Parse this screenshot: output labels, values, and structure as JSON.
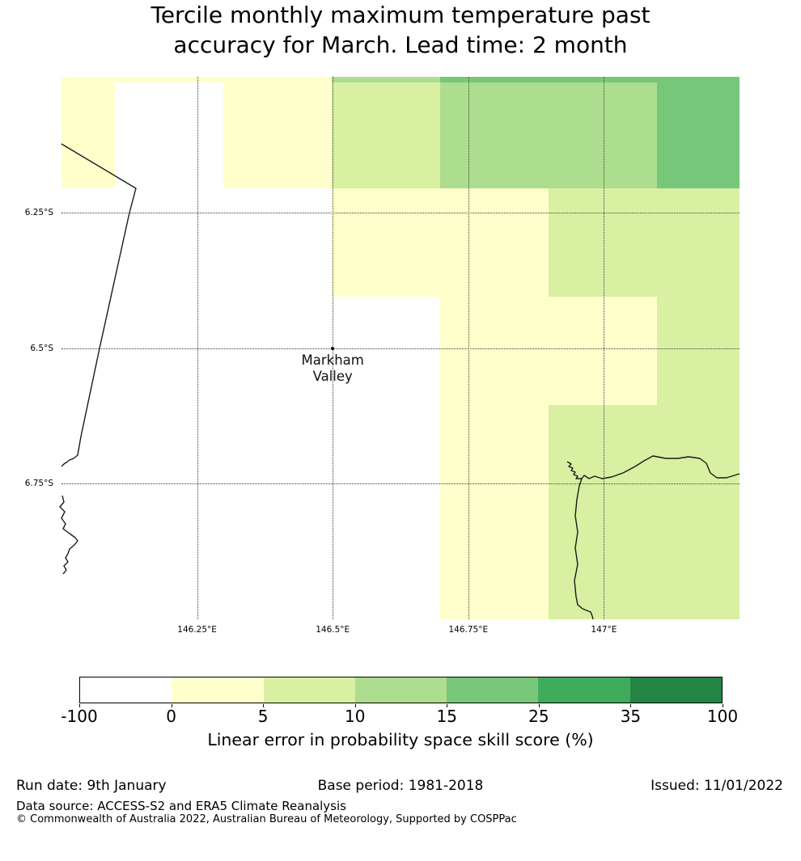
{
  "title": {
    "line1": "Tercile monthly maximum temperature past",
    "line2": "accuracy for March. Lead time: 2 month"
  },
  "map": {
    "marker": {
      "label_line1": "Markham",
      "label_line2": "Valley",
      "lon": 146.5,
      "lat": 6.5
    },
    "x_ticks": [
      {
        "label": "146.25°E",
        "lon": 146.25
      },
      {
        "label": "146.5°E",
        "lon": 146.5
      },
      {
        "label": "146.75°E",
        "lon": 146.75
      },
      {
        "label": "147°E",
        "lon": 147.0
      }
    ],
    "y_ticks": [
      {
        "label": "6.25°S",
        "lat": 6.25
      },
      {
        "label": "6.5°S",
        "lat": 6.5
      },
      {
        "label": "6.75°S",
        "lat": 6.75
      }
    ]
  },
  "chart_data": {
    "type": "heatmap",
    "title": "Tercile monthly maximum temperature past accuracy for March. Lead time: 2 month",
    "value_label": "Linear error in probability space skill score (%)",
    "lon_range": [
      146.0,
      147.25
    ],
    "lat_range_south": [
      6.0,
      7.0
    ],
    "lon_edges": [
      146.0,
      146.098,
      146.298,
      146.498,
      146.698,
      146.898,
      147.098,
      147.25
    ],
    "lat_edges": [
      6.0,
      6.01,
      6.205,
      6.405,
      6.605,
      6.805,
      7.0
    ],
    "bins": [
      {
        "range": "-100 to 0",
        "color": "#ffffff"
      },
      {
        "range": "0 to 5",
        "color": "#ffffcc"
      },
      {
        "range": "5 to 10",
        "color": "#d9f0a3"
      },
      {
        "range": "10 to 15",
        "color": "#addd8e"
      },
      {
        "range": "15 to 25",
        "color": "#78c679"
      },
      {
        "range": "25 to 35",
        "color": "#41ab5d"
      },
      {
        "range": "35 to 100",
        "color": "#238443"
      }
    ],
    "cell_bins": [
      [
        1,
        1,
        1,
        3,
        4,
        4,
        4
      ],
      [
        1,
        0,
        1,
        2,
        3,
        3,
        4
      ],
      [
        0,
        0,
        0,
        1,
        1,
        2,
        2
      ],
      [
        0,
        0,
        0,
        0,
        1,
        1,
        2
      ],
      [
        0,
        0,
        0,
        0,
        1,
        2,
        2
      ],
      [
        0,
        0,
        0,
        0,
        1,
        2,
        2
      ]
    ],
    "gridline_lons": [
      146.25,
      146.5,
      146.75,
      147.0
    ],
    "gridline_lats": [
      6.25,
      6.5,
      6.75
    ],
    "grid_style": "dotted",
    "legend_position": "bottom",
    "coastlines": [
      "M76,178 L168,233 L160,263 L123,431 L100,540 L96,563 L91,567 L86,569 L82,572 L79,574 L76,577",
      "M77,613 L79,621 L74,627 L80,633 L76,641 L81,648 L78,654 L86,660 L93,665 L96,669 L92,674 L86,679 L84,685 L81,690 L84,695 L79,700 L82,705 L78,710",
      "M914,586 L898,591 L886,591 L878,585 L873,573 L865,567 L851,565 L838,567 L823,567 L807,564 L796,570 L785,577 L770,585 L756,590 L744,592 L735,589 L728,592 L722,588 L719,592 L716,601 L713,618 L711,638 L714,658 L711,678 L714,698 L710,718 L712,738 L714,748 L720,753 L730,757 L732,762 L733,766",
      "M701,571 L706,574 L703,577 L708,579 L706,582 L711,584 L709,587 L714,589 L712,592 L719,592"
    ]
  },
  "colorbar": {
    "tick_labels": [
      "-100",
      "0",
      "5",
      "10",
      "15",
      "25",
      "35",
      "100"
    ],
    "label": "Linear error in probability space skill score (%)"
  },
  "footer": {
    "run_date": "Run date: 9th January",
    "base_period": "Base period: 1981-2018",
    "issued": "Issued: 11/01/2022",
    "data_source": "Data source: ACCESS-S2 and ERA5 Climate Reanalysis",
    "copyright": "© Commonwealth of Australia 2022, Australian Bureau of Meteorology, Supported by COSPPac"
  }
}
